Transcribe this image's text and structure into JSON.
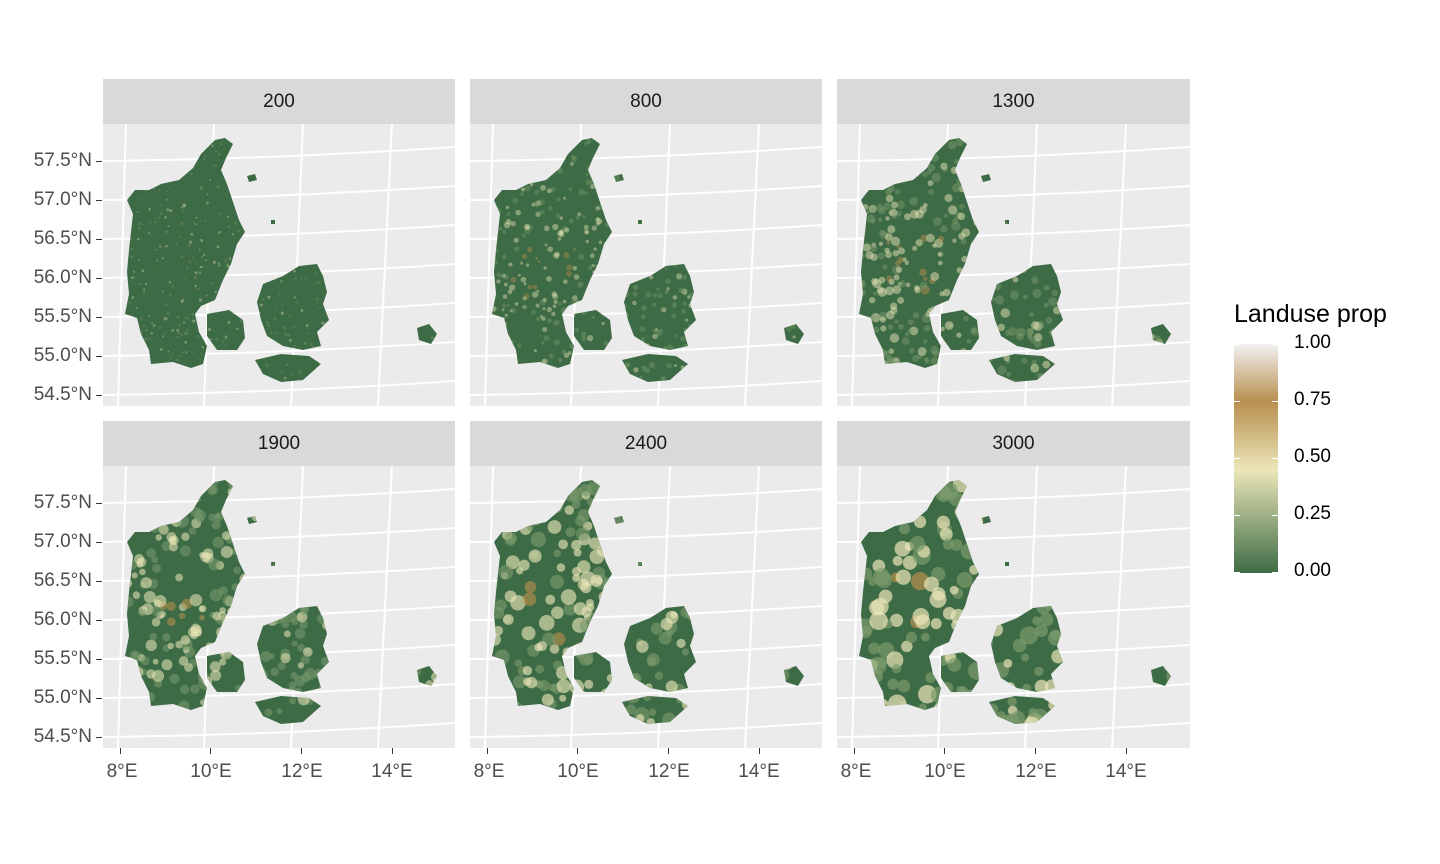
{
  "map": {
    "panels": [
      {
        "label": "200",
        "smooth": 0.0
      },
      {
        "label": "800",
        "smooth": 0.2
      },
      {
        "label": "1300",
        "smooth": 0.4
      },
      {
        "label": "1900",
        "smooth": 0.6
      },
      {
        "label": "2400",
        "smooth": 0.8
      },
      {
        "label": "3000",
        "smooth": 1.0
      }
    ],
    "y_axis_labels": [
      "57.5°N",
      "57.0°N",
      "56.5°N",
      "56.0°N",
      "55.5°N",
      "55.0°N",
      "54.5°N"
    ],
    "x_axis_labels": [
      "8°E",
      "10°E",
      "12°E",
      "14°E"
    ],
    "legend": {
      "title": "Landuse prop",
      "labels": [
        "1.00",
        "0.75",
        "0.50",
        "0.25",
        "0.00"
      ],
      "colors": [
        "#f2f2f2",
        "#b88f4f",
        "#ebe6b8",
        "#3d6b45"
      ]
    },
    "colors": {
      "panel_background": "#ebebeb",
      "strip_background": "#d9d9d9",
      "gridline": "#ffffff",
      "low": "#3d6b45",
      "mid": "#ebe6b8",
      "high": "#b88f4f"
    }
  }
}
